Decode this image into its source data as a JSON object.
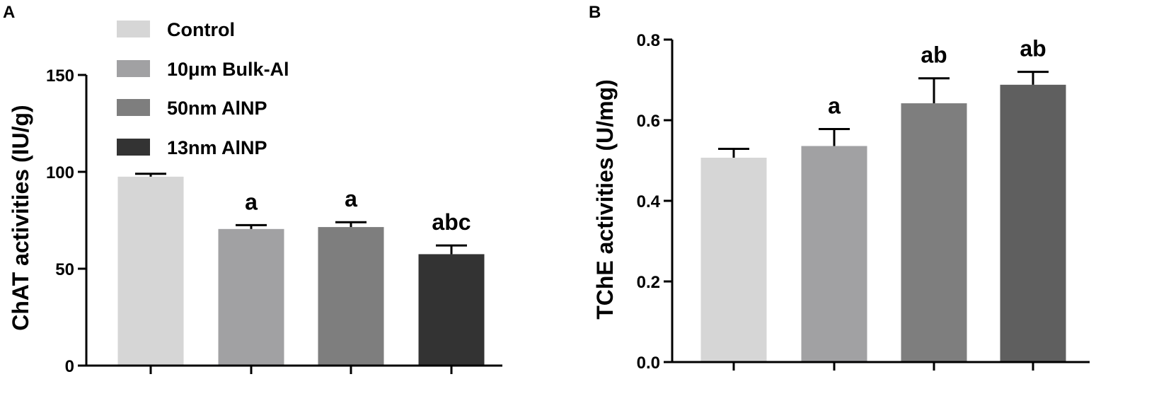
{
  "figure": {
    "panels": [
      "A",
      "B"
    ]
  },
  "legend": [
    {
      "label": "Control",
      "color": "#d6d6d6"
    },
    {
      "label": "10μm Bulk-Al",
      "color": "#a1a1a3"
    },
    {
      "label": "50nm AlNP",
      "color": "#7e7e7e"
    },
    {
      "label": "13nm AlNP",
      "color": "#333333"
    }
  ],
  "chart_data": [
    {
      "panel": "A",
      "type": "bar",
      "ylabel": "ChAT activities (IU/g)",
      "xlabel": "",
      "ylim": [
        0,
        150
      ],
      "yticks": [
        0,
        50,
        100,
        150
      ],
      "categories": [
        "Control",
        "10μm Bulk-Al",
        "50nm AlNP",
        "13nm AlNP"
      ],
      "values": [
        97.5,
        70.5,
        71.5,
        57.5
      ],
      "errors": [
        1.5,
        2.0,
        2.5,
        4.5
      ],
      "significance": [
        "",
        "a",
        "a",
        "abc"
      ],
      "colors": [
        "#d6d6d6",
        "#a1a1a3",
        "#7e7e7e",
        "#333333"
      ]
    },
    {
      "panel": "B",
      "type": "bar",
      "ylabel": "TChE activities (U/mg)",
      "xlabel": "",
      "ylim": [
        0,
        0.8
      ],
      "yticks": [
        0.0,
        0.2,
        0.4,
        0.6,
        0.8
      ],
      "categories": [
        "Control",
        "10μm Bulk-Al",
        "50nm AlNP",
        "13nm AlNP"
      ],
      "values": [
        0.507,
        0.536,
        0.642,
        0.688
      ],
      "errors": [
        0.022,
        0.042,
        0.062,
        0.032
      ],
      "significance": [
        "",
        "a",
        "ab",
        "ab"
      ],
      "colors": [
        "#d6d6d6",
        "#a1a1a3",
        "#7e7e7e",
        "#5f5f5f"
      ]
    }
  ]
}
